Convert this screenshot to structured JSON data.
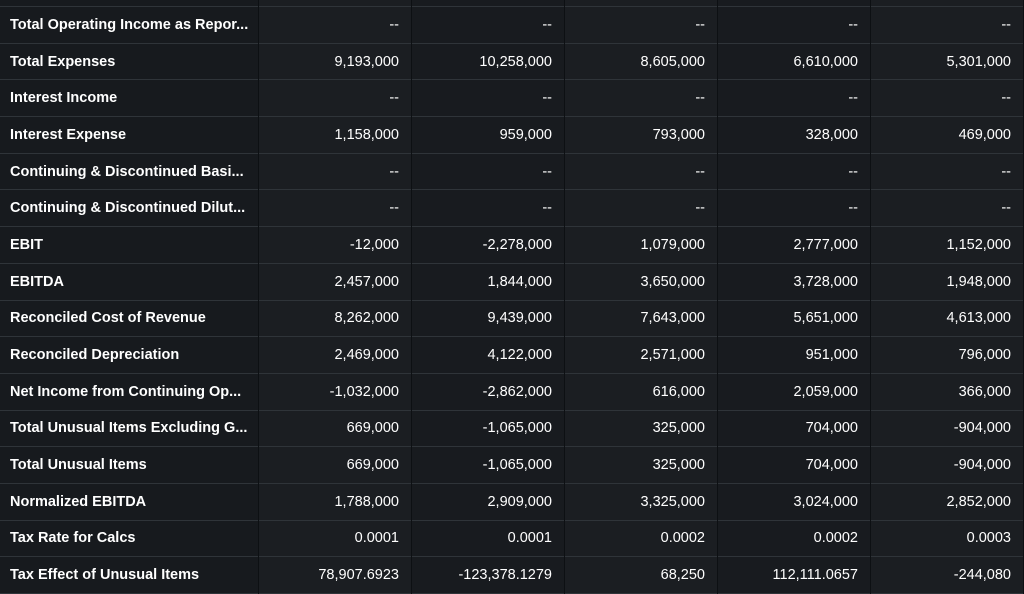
{
  "rows": [
    {
      "label": "Total Operating Income as Repor...",
      "values": [
        "--",
        "--",
        "--",
        "--",
        "--"
      ]
    },
    {
      "label": "Total Expenses",
      "values": [
        "9,193,000",
        "10,258,000",
        "8,605,000",
        "6,610,000",
        "5,301,000"
      ]
    },
    {
      "label": "Interest Income",
      "values": [
        "--",
        "--",
        "--",
        "--",
        "--"
      ]
    },
    {
      "label": "Interest Expense",
      "values": [
        "1,158,000",
        "959,000",
        "793,000",
        "328,000",
        "469,000"
      ]
    },
    {
      "label": "Continuing & Discontinued Basi...",
      "values": [
        "--",
        "--",
        "--",
        "--",
        "--"
      ]
    },
    {
      "label": "Continuing & Discontinued Dilut...",
      "values": [
        "--",
        "--",
        "--",
        "--",
        "--"
      ]
    },
    {
      "label": "EBIT",
      "values": [
        "-12,000",
        "-2,278,000",
        "1,079,000",
        "2,777,000",
        "1,152,000"
      ]
    },
    {
      "label": "EBITDA",
      "values": [
        "2,457,000",
        "1,844,000",
        "3,650,000",
        "3,728,000",
        "1,948,000"
      ]
    },
    {
      "label": "Reconciled Cost of Revenue",
      "values": [
        "8,262,000",
        "9,439,000",
        "7,643,000",
        "5,651,000",
        "4,613,000"
      ]
    },
    {
      "label": "Reconciled Depreciation",
      "values": [
        "2,469,000",
        "4,122,000",
        "2,571,000",
        "951,000",
        "796,000"
      ]
    },
    {
      "label": "Net Income from Continuing Op...",
      "values": [
        "-1,032,000",
        "-2,862,000",
        "616,000",
        "2,059,000",
        "366,000"
      ]
    },
    {
      "label": "Total Unusual Items Excluding G...",
      "values": [
        "669,000",
        "-1,065,000",
        "325,000",
        "704,000",
        "-904,000"
      ]
    },
    {
      "label": "Total Unusual Items",
      "values": [
        "669,000",
        "-1,065,000",
        "325,000",
        "704,000",
        "-904,000"
      ]
    },
    {
      "label": "Normalized EBITDA",
      "values": [
        "1,788,000",
        "2,909,000",
        "3,325,000",
        "3,024,000",
        "2,852,000"
      ]
    },
    {
      "label": "Tax Rate for Calcs",
      "values": [
        "0.0001",
        "0.0001",
        "0.0002",
        "0.0002",
        "0.0003"
      ]
    },
    {
      "label": "Tax Effect of Unusual Items",
      "values": [
        "78,907.6923",
        "-123,378.1279",
        "68,250",
        "112,111.0657",
        "-244,080"
      ]
    }
  ]
}
